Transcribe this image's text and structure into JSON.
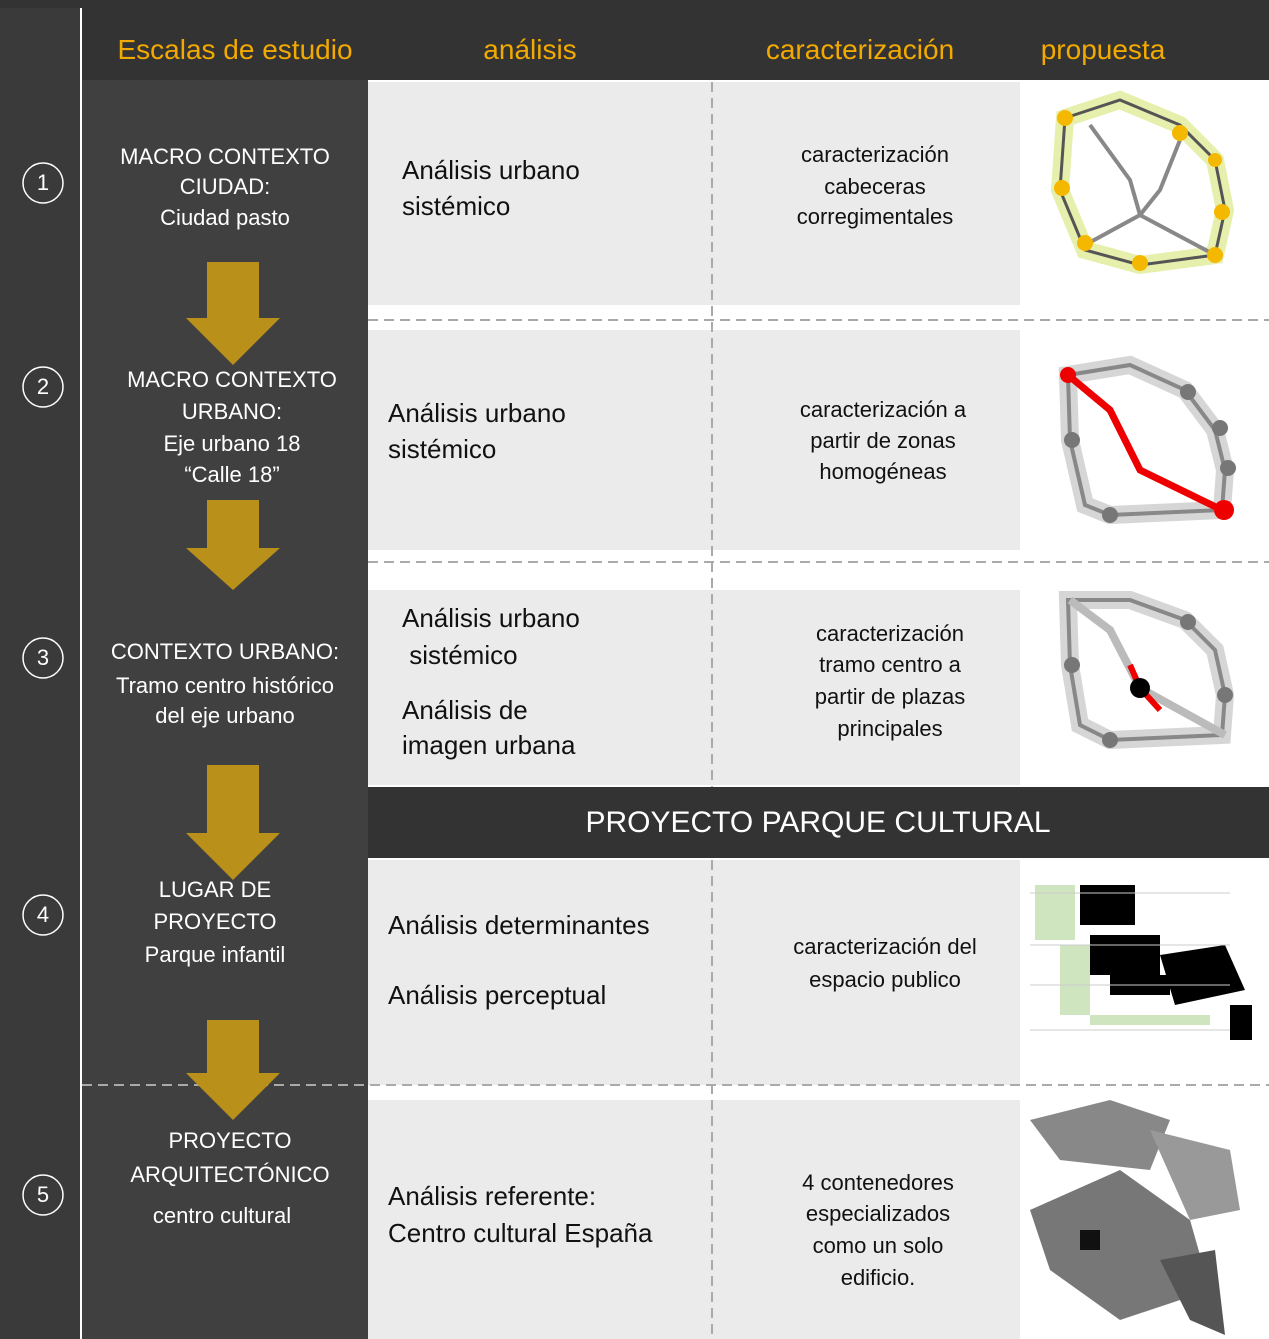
{
  "header": {
    "columns": [
      "Escalas de estudio",
      "análisis",
      "caracterización",
      "propuesta"
    ]
  },
  "banner": "PROYECTO PARQUE CULTURAL",
  "rows": [
    {
      "number": "1",
      "scale": [
        "MACRO CONTEXTO",
        "CIUDAD:",
        "Ciudad pasto"
      ],
      "analysis": [
        "Análisis urbano",
        "sistémico"
      ],
      "characterization": [
        "caracterización",
        "cabeceras",
        "corregimentales"
      ]
    },
    {
      "number": "2",
      "scale": [
        "MACRO CONTEXTO",
        "URBANO:",
        "Eje urbano 18",
        "“Calle 18”"
      ],
      "analysis": [
        "Análisis urbano",
        "sistémico"
      ],
      "characterization": [
        "caracterización a",
        "partir de zonas",
        "homogéneas"
      ]
    },
    {
      "number": "3",
      "scale": [
        "CONTEXTO URBANO:",
        "Tramo centro histórico",
        "del eje urbano"
      ],
      "analysis": [
        "Análisis urbano",
        " sistémico",
        "Análisis de",
        "imagen urbana"
      ],
      "characterization": [
        "caracterización",
        "tramo centro a",
        "partir de plazas",
        "principales"
      ]
    },
    {
      "number": "4",
      "scale": [
        "LUGAR DE",
        "PROYECTO",
        "Parque infantil"
      ],
      "analysis": [
        "Análisis determinantes",
        "Análisis perceptual"
      ],
      "characterization": [
        "caracterización del",
        "espacio publico"
      ]
    },
    {
      "number": "5",
      "scale": [
        "PROYECTO",
        "ARQUITECTÓNICO",
        "centro cultural"
      ],
      "analysis": [
        "Análisis referente:",
        "Centro cultural España"
      ],
      "characterization": [
        "4 contenedores",
        "especializados",
        "como un solo",
        "edificio."
      ]
    }
  ]
}
